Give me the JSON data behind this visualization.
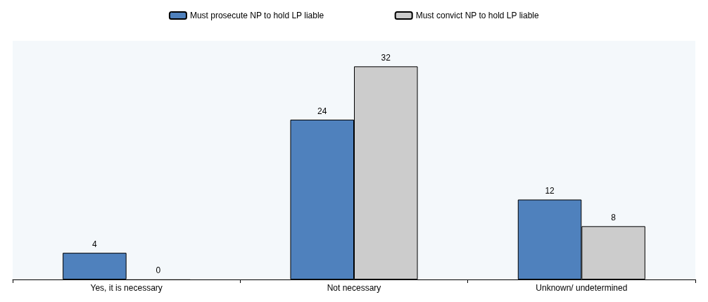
{
  "chart_data": {
    "type": "bar",
    "categories": [
      "Yes, it is necessary",
      "Not necessary",
      "Unknown/ undetermined"
    ],
    "series": [
      {
        "name": "Must prosecute NP to hold LP liable",
        "color": "#4f81bd",
        "values": [
          4,
          24,
          12
        ]
      },
      {
        "name": "Must convict NP to hold LP liable",
        "color": "#cccccc",
        "values": [
          0,
          32,
          8
        ]
      }
    ],
    "data_labels": true,
    "legend": "top",
    "grid": false
  }
}
